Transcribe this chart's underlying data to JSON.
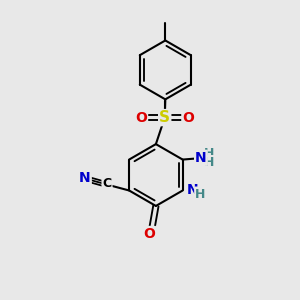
{
  "bg_color": "#e8e8e8",
  "bond_color": "#000000",
  "lw": 1.5,
  "figsize": [
    3.0,
    3.0
  ],
  "dpi": 100,
  "colors": {
    "S": "#cccc00",
    "O": "#dd0000",
    "N": "#0000cc",
    "NH": "#448888",
    "C": "#000000"
  },
  "xlim": [
    0,
    10
  ],
  "ylim": [
    0,
    10
  ]
}
